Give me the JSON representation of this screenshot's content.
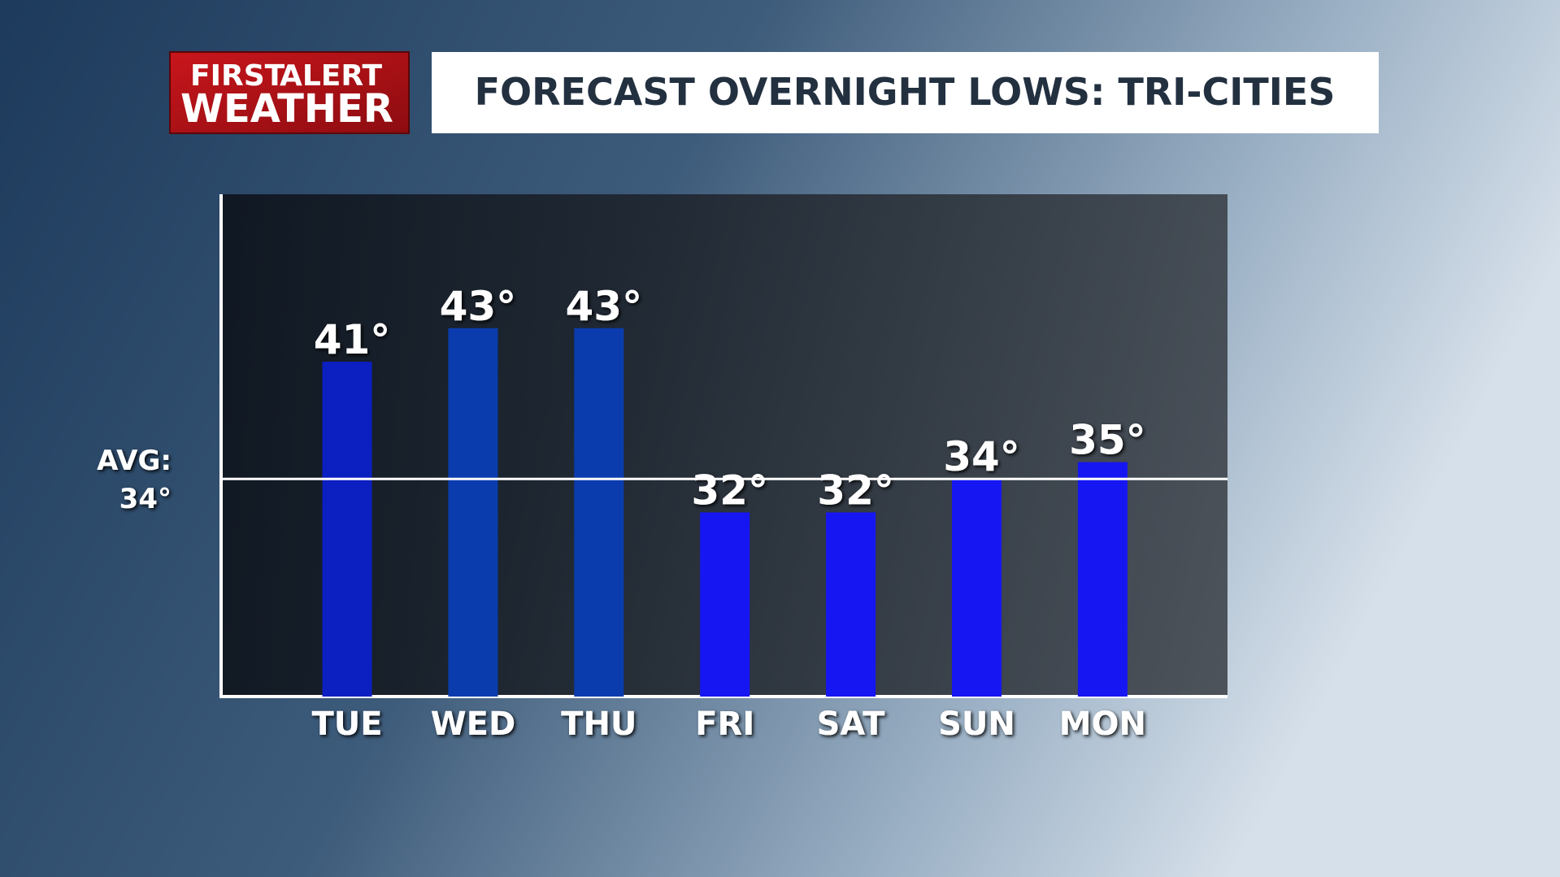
{
  "logo": {
    "word1": "FIRST",
    "word2": "ALERT",
    "word3": "WEATHER"
  },
  "chart_data": {
    "type": "bar",
    "title": "FORECAST OVERNIGHT LOWS: TRI-CITIES",
    "categories": [
      "TUE",
      "WED",
      "THU",
      "FRI",
      "SAT",
      "SUN",
      "MON"
    ],
    "values": [
      41,
      43,
      43,
      32,
      32,
      34,
      35
    ],
    "value_labels": [
      "41°",
      "43°",
      "43°",
      "32°",
      "32°",
      "34°",
      "35°"
    ],
    "colors": [
      "#0c1fc0",
      "#0a3cae",
      "#0a3cae",
      "#1616f2",
      "#1616f2",
      "#1616f2",
      "#1616f2"
    ],
    "ylim": [
      21,
      51
    ],
    "reference_line": {
      "label": "AVG:",
      "value": 34,
      "value_label": "34°"
    }
  }
}
